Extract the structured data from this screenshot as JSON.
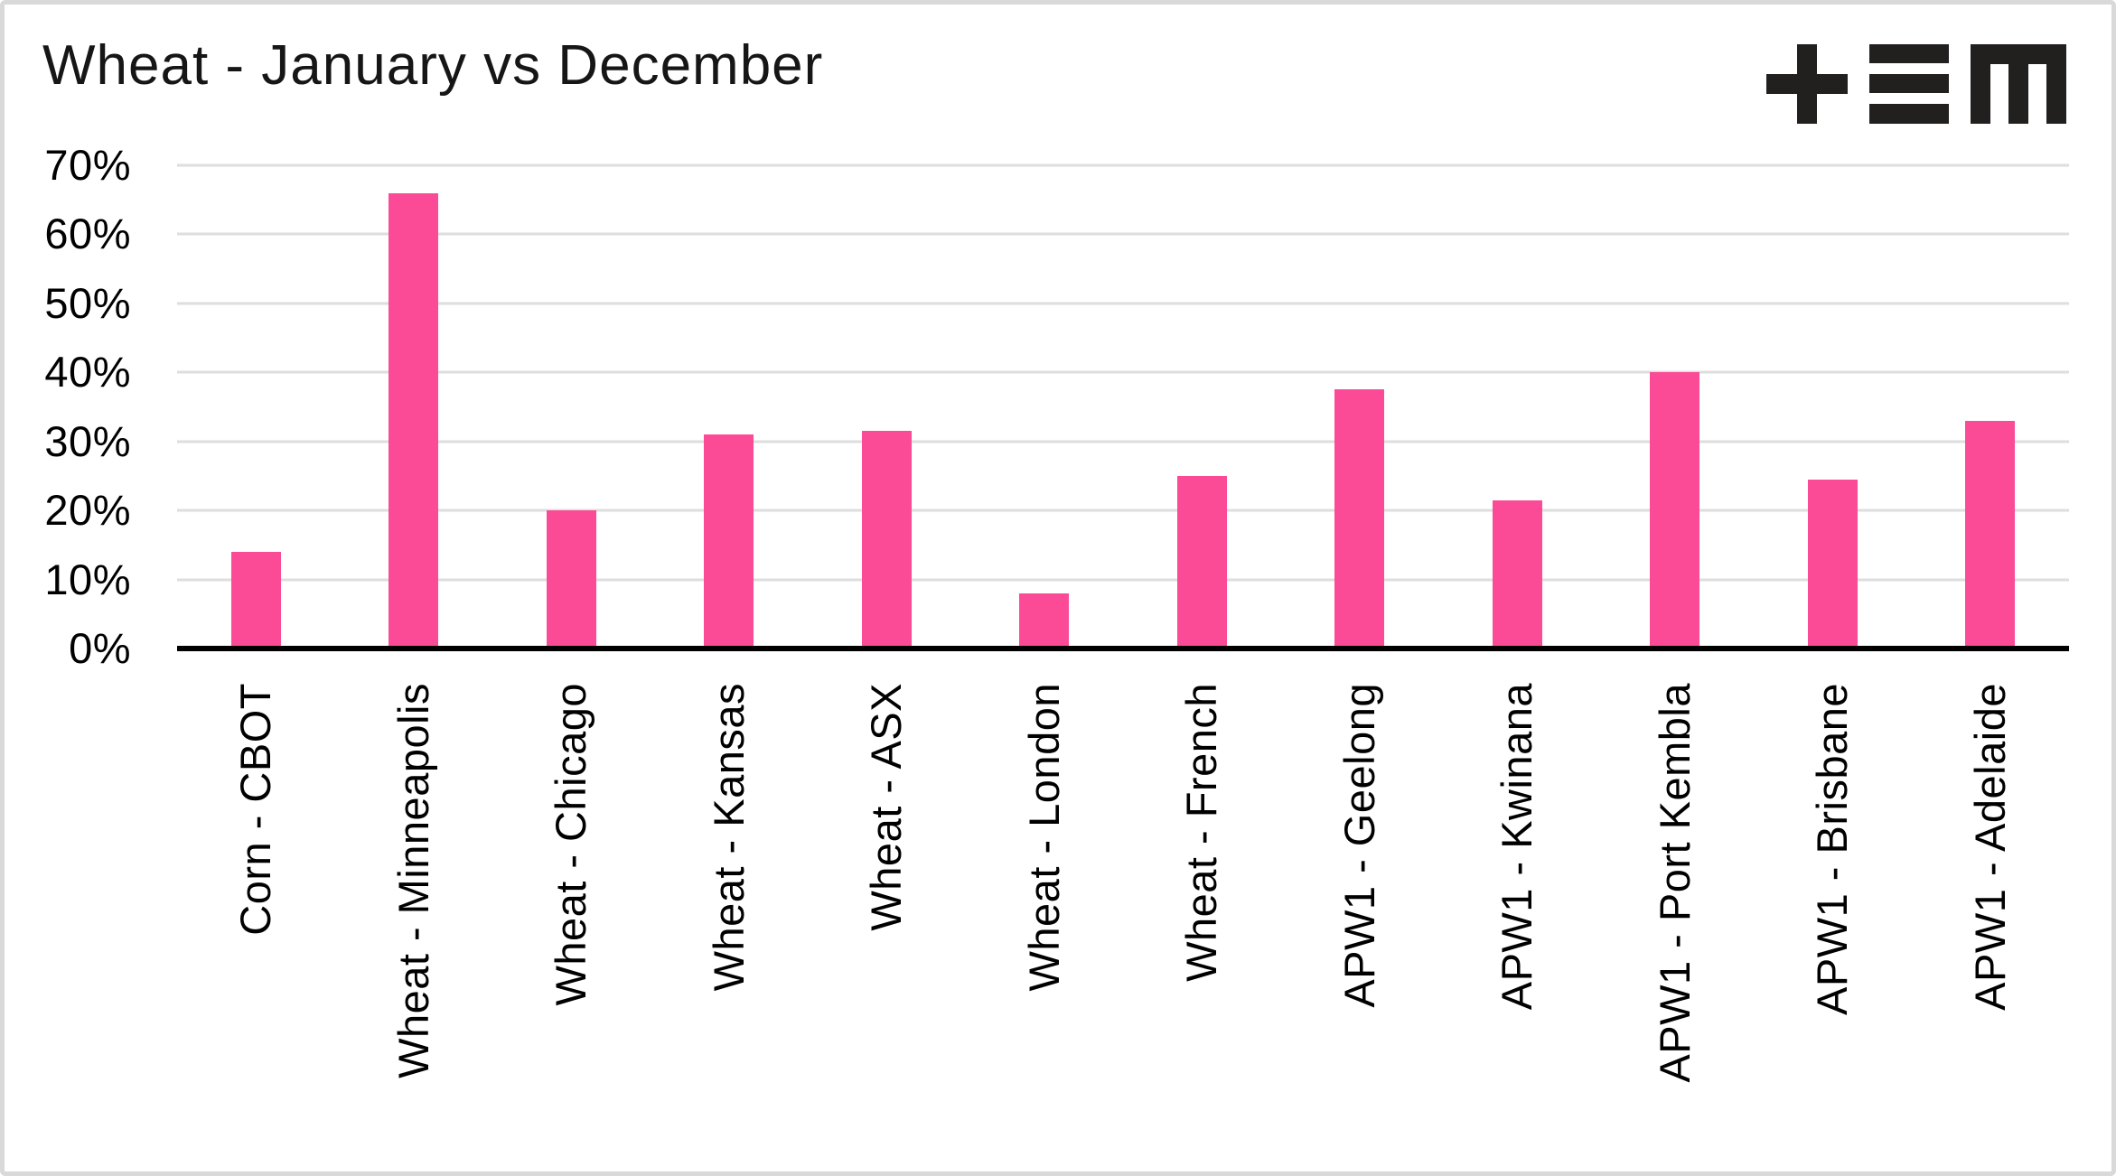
{
  "header": {
    "title": "Wheat - January vs December"
  },
  "icons": {
    "logo": "tem-logo",
    "logo_color": "#221F1F"
  },
  "chart_data": {
    "type": "bar",
    "title": "Wheat - January vs December",
    "categories": [
      "Corn - CBOT",
      "Wheat - Minneapolis",
      "Wheat - Chicago",
      "Wheat - Kansas",
      "Wheat - ASX",
      "Wheat - London",
      "Wheat - French",
      "APW1 - Geelong",
      "APW1 - Kwinana",
      "APW1 - Port Kembla",
      "APW1 - Brisbane",
      "APW1 - Adelaide"
    ],
    "values": [
      14,
      66,
      20,
      31,
      31.5,
      8,
      25,
      37.5,
      21.5,
      40,
      24.5,
      33
    ],
    "xlabel": "",
    "ylabel": "",
    "ylim": [
      0,
      70
    ],
    "ytick_labels": [
      "0%",
      "10%",
      "20%",
      "30%",
      "40%",
      "50%",
      "60%",
      "70%"
    ],
    "ytick_values": [
      0,
      10,
      20,
      30,
      40,
      50,
      60,
      70
    ],
    "grid": "horizontal",
    "legend_position": "none",
    "bar_color": "#FB4B96",
    "gridline_color": "#DEDEDE",
    "axis_color": "#000000"
  }
}
